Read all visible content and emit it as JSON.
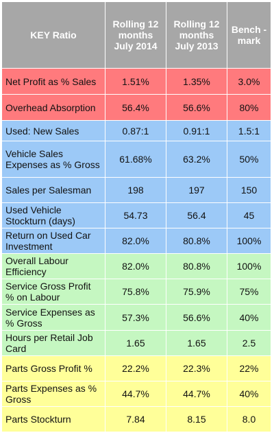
{
  "header": {
    "col1": "KEY Ratio",
    "col2": "Rolling 12 months July 2014",
    "col3": "Rolling 12 months July 2013",
    "col4": "Bench -mark"
  },
  "colors": {
    "header": "#a7a7a7",
    "red": "#ff7a7d",
    "blue": "#9cc9f7",
    "green": "#c5f7c1",
    "yellow": "#ffff99"
  },
  "rows": [
    {
      "label": "Net Profit as % Sales",
      "y2014": "1.51%",
      "y2013": "1.35%",
      "benchmark": "3.0%",
      "group": "red"
    },
    {
      "label": "Overhead Absorption",
      "y2014": "56.4%",
      "y2013": "56.6%",
      "benchmark": "80%",
      "group": "red"
    },
    {
      "label": "Used: New Sales",
      "y2014": "0.87:1",
      "y2013": "0.91:1",
      "benchmark": "1.5:1",
      "group": "blue"
    },
    {
      "label": "Vehicle Sales Expenses as % Gross",
      "y2014": "61.68%",
      "y2013": "63.2%",
      "benchmark": "50%",
      "group": "blue"
    },
    {
      "label": "Sales per Salesman",
      "y2014": "198",
      "y2013": "197",
      "benchmark": "150",
      "group": "blue"
    },
    {
      "label": "Used Vehicle Stockturn (days)",
      "y2014": "54.73",
      "y2013": "56.4",
      "benchmark": "45",
      "group": "blue"
    },
    {
      "label": "Return on Used Car Investment",
      "y2014": "82.0%",
      "y2013": "80.8%",
      "benchmark": "100%",
      "group": "blue"
    },
    {
      "label": "Overall Labour Efficiency",
      "y2014": "82.0%",
      "y2013": "80.8%",
      "benchmark": "100%",
      "group": "green"
    },
    {
      "label": "Service Gross Profit % on Labour",
      "y2014": "75.8%",
      "y2013": "75.9%",
      "benchmark": "75%",
      "group": "green"
    },
    {
      "label": "Service Expenses as % Gross",
      "y2014": "57.3%",
      "y2013": "56.6%",
      "benchmark": "40%",
      "group": "green"
    },
    {
      "label": "Hours per Retail Job Card",
      "y2014": "1.65",
      "y2013": "1.65",
      "benchmark": "2.5",
      "group": "green"
    },
    {
      "label": "Parts Gross Profit %",
      "y2014": "22.2%",
      "y2013": "22.3%",
      "benchmark": "22%",
      "group": "yellow"
    },
    {
      "label": "Parts Expenses as % Gross",
      "y2014": "44.7%",
      "y2013": "44.7%",
      "benchmark": "40%",
      "group": "yellow"
    },
    {
      "label": "Parts Stockturn",
      "y2014": "7.84",
      "y2013": "8.15",
      "benchmark": "8.0",
      "group": "yellow"
    }
  ]
}
